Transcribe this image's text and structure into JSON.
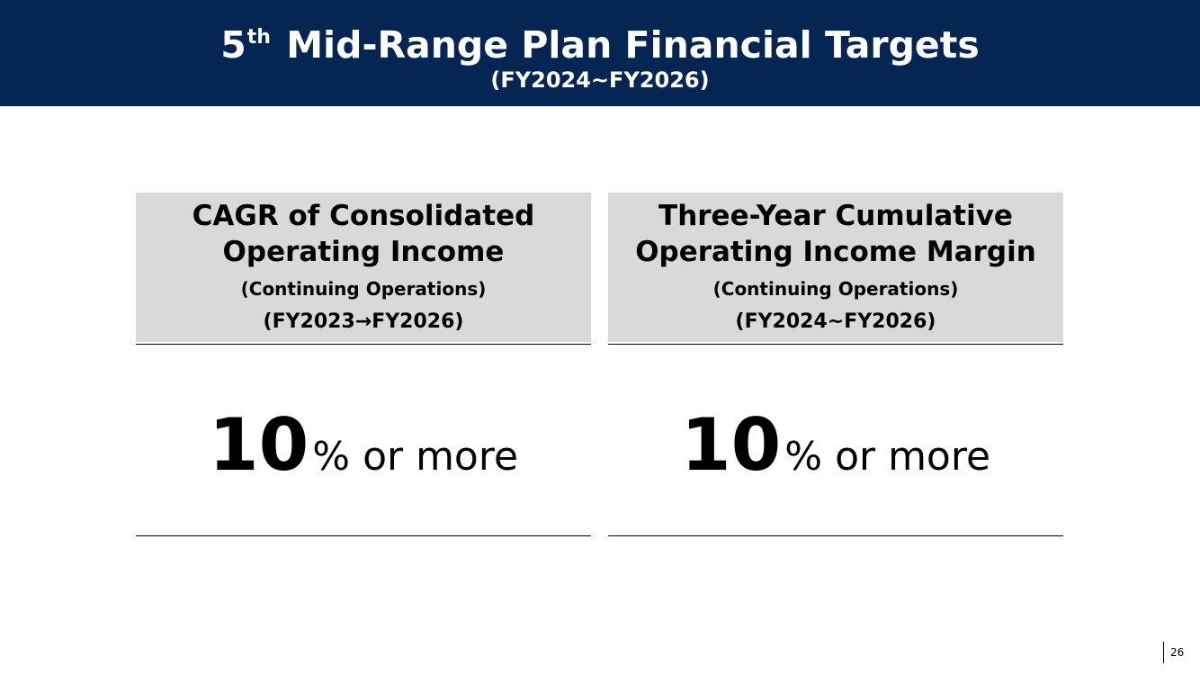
{
  "header": {
    "title_number": "5",
    "title_ordinal": "th",
    "title_rest": "Mid-Range Plan Financial Targets",
    "subtitle": "(FY2024~FY2026)",
    "background_color": "#052552",
    "text_color": "#ffffff"
  },
  "cards": [
    {
      "heading_line1": "CAGR of Consolidated",
      "heading_line2": "Operating Income",
      "note": "(Continuing Operations)",
      "period": "(FY2023→FY2026)",
      "target_number": "10",
      "target_unit": "% or more"
    },
    {
      "heading_line1": "Three-Year Cumulative",
      "heading_line2": "Operating Income Margin",
      "note": "(Continuing Operations)",
      "period": "(FY2024~FY2026)",
      "target_number": "10",
      "target_unit": "% or more"
    }
  ],
  "card_head_color": "#d9d9d9",
  "page_number": "26"
}
